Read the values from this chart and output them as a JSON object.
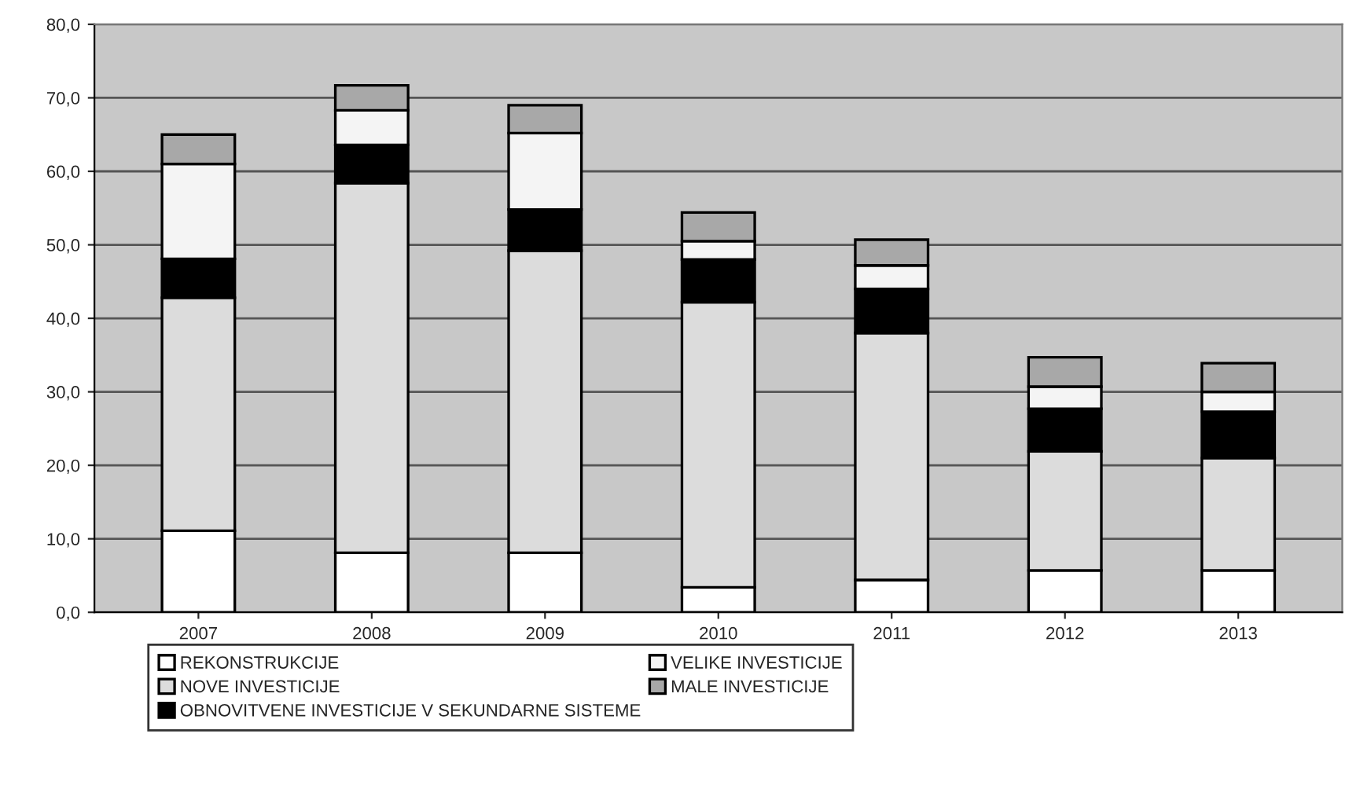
{
  "chart_data": {
    "type": "bar",
    "stacked": true,
    "categories": [
      "2007",
      "2008",
      "2009",
      "2010",
      "2011",
      "2012",
      "2013"
    ],
    "series": [
      {
        "name": "REKONSTRUKCIJE",
        "color": "#ffffff",
        "values": [
          11.1,
          8.1,
          8.1,
          3.4,
          4.4,
          5.7,
          5.7
        ]
      },
      {
        "name": "NOVE INVESTICIJE",
        "color": "#dcdcdc",
        "values": [
          31.7,
          50.3,
          41.1,
          38.8,
          33.6,
          16.2,
          15.3
        ]
      },
      {
        "name": "OBNOVITVENE INVESTICIJE V SEKUNDARNE SISTEME",
        "color": "#000000",
        "values": [
          5.3,
          5.2,
          5.6,
          5.8,
          6.0,
          5.8,
          6.3
        ]
      },
      {
        "name": "VELIKE INVESTICIJE",
        "color": "#f4f4f4",
        "values": [
          12.9,
          4.7,
          10.4,
          2.5,
          3.2,
          3.0,
          2.7
        ]
      },
      {
        "name": "MALE INVESTICIJE",
        "color": "#a8a8a8",
        "values": [
          4.0,
          3.4,
          3.8,
          3.9,
          3.5,
          4.0,
          3.9
        ]
      }
    ],
    "ylim": [
      0,
      80
    ],
    "yticks": [
      {
        "value": 0,
        "label": "0,0"
      },
      {
        "value": 10,
        "label": "10,0"
      },
      {
        "value": 20,
        "label": "20,0"
      },
      {
        "value": 30,
        "label": "30,0"
      },
      {
        "value": 40,
        "label": "40,0"
      },
      {
        "value": 50,
        "label": "50,0"
      },
      {
        "value": 60,
        "label": "60,0"
      },
      {
        "value": 70,
        "label": "70,0"
      },
      {
        "value": 80,
        "label": "80,0"
      }
    ],
    "grid": "y",
    "legend": "bottom"
  }
}
